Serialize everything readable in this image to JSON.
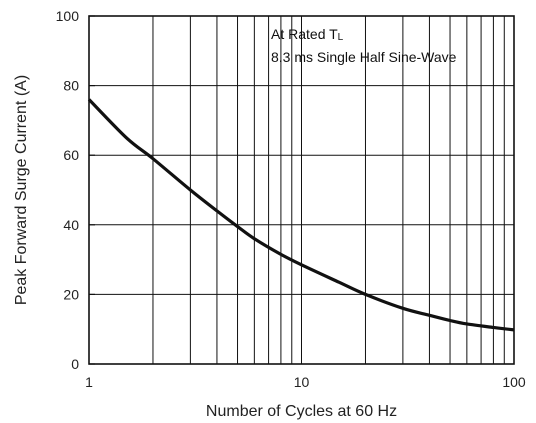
{
  "chart_data": {
    "type": "line",
    "title": "",
    "xlabel": "Number of Cycles at 60 Hz",
    "ylabel": "Peak Forward Surge Current (A)",
    "xscale": "log",
    "xlim": [
      1,
      100
    ],
    "ylim": [
      0,
      100
    ],
    "x_ticks": [
      1,
      10,
      100
    ],
    "x_tick_labels": [
      "1",
      "10",
      "100"
    ],
    "y_ticks": [
      0,
      20,
      40,
      60,
      80,
      100
    ],
    "y_tick_labels": [
      "0",
      "20",
      "40",
      "60",
      "80",
      "100"
    ],
    "grid": true,
    "annotations": {
      "line1_main": "At Rated T",
      "line1_subscript": "L",
      "line2": "8.3 ms Single Half Sine-Wave"
    },
    "series": [
      {
        "x": [
          1,
          1.5,
          2,
          3,
          4,
          5,
          6,
          8,
          10,
          15,
          20,
          30,
          40,
          50,
          60,
          80,
          100
        ],
        "y": [
          76,
          65,
          59,
          50,
          44,
          39.5,
          36,
          31.5,
          28.5,
          23.5,
          20,
          16,
          14,
          12.5,
          11.5,
          10.5,
          9.8
        ]
      }
    ]
  }
}
